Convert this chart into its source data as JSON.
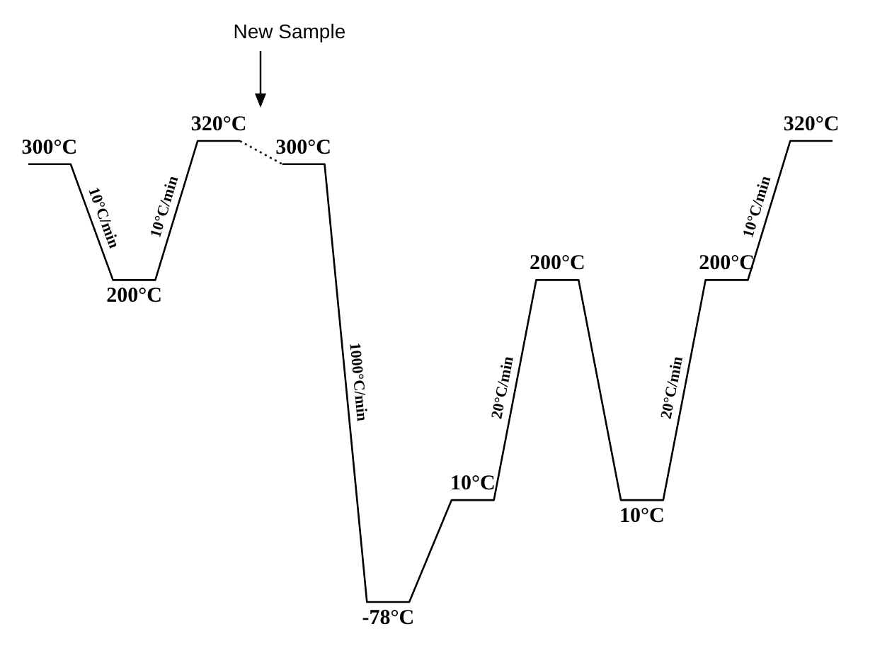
{
  "chart_data": {
    "type": "line",
    "categories": [
      null,
      null,
      null,
      null,
      null,
      null,
      null,
      null,
      null,
      null,
      null,
      null,
      null,
      null,
      null,
      null,
      null,
      null,
      null,
      null
    ],
    "series": [
      {
        "color": "#000000",
        "line_style": "solid",
        "values": [
          300,
          300,
          200,
          200,
          320,
          320,
          null,
          null,
          null,
          null,
          null,
          null,
          null,
          null,
          null,
          null,
          null,
          null,
          null,
          null
        ],
        "value_labels": [
          "300°C",
          null,
          "200°C",
          null,
          "320°C",
          null,
          null,
          null,
          null,
          null,
          null,
          null,
          null,
          null,
          null,
          null,
          null,
          null,
          null,
          null
        ]
      },
      {
        "color": "#000000",
        "line_style": "dotted",
        "values": [
          null,
          null,
          null,
          null,
          null,
          320,
          300,
          null,
          null,
          null,
          null,
          null,
          null,
          null,
          null,
          null,
          null,
          null,
          null,
          null
        ]
      },
      {
        "color": "#000000",
        "line_style": "solid",
        "values": [
          null,
          null,
          null,
          null,
          null,
          null,
          300,
          300,
          -78,
          -78,
          10,
          10,
          200,
          200,
          10,
          10,
          200,
          200,
          320,
          320
        ],
        "value_labels": [
          null,
          null,
          null,
          null,
          null,
          null,
          "300°C",
          null,
          "-78°C",
          null,
          "10°C",
          null,
          "200°C",
          null,
          "10°C",
          null,
          "200°C",
          null,
          "320°C",
          null
        ]
      }
    ],
    "annotations": [
      "New Sample",
      "10°C/min",
      "10°C/min",
      "1000°C/min",
      "20°C/min",
      "20°C/min",
      "10°C/min"
    ],
    "tick_labels": false,
    "grid": false,
    "legend": false,
    "marker": "none"
  }
}
